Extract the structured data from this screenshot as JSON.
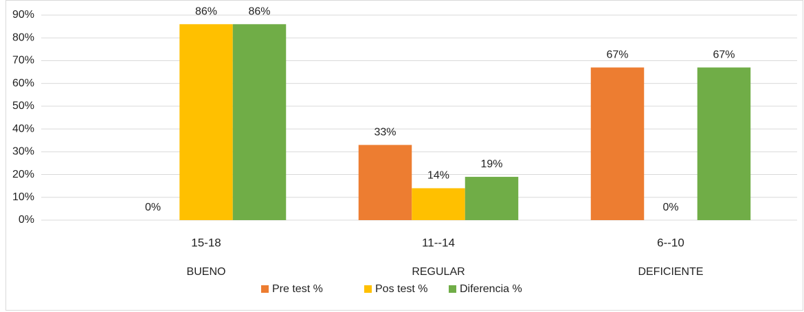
{
  "chart_data": {
    "type": "bar",
    "categories": [
      "15-18",
      "11--14",
      "6--10"
    ],
    "groups": [
      "BUENO",
      "REGULAR",
      "DEFICIENTE"
    ],
    "series": [
      {
        "name": "Pre test %",
        "color": "#ed7d31",
        "values": [
          0,
          33,
          67
        ],
        "value_labels": [
          "0%",
          "33%",
          "67%"
        ]
      },
      {
        "name": "Pos test %",
        "color": "#ffc000",
        "values": [
          86,
          14,
          0
        ],
        "value_labels": [
          "86%",
          "14%",
          "0%"
        ]
      },
      {
        "name": "Diferencia %",
        "color": "#70ad47",
        "values": [
          86,
          19,
          67
        ],
        "value_labels": [
          "86%",
          "19%",
          "67%"
        ]
      }
    ],
    "ylim": [
      0,
      90
    ],
    "yticks": [
      {
        "value": 0,
        "label": "0%"
      },
      {
        "value": 10,
        "label": "10%"
      },
      {
        "value": 20,
        "label": "20%"
      },
      {
        "value": 30,
        "label": "30%"
      },
      {
        "value": 40,
        "label": "40%"
      },
      {
        "value": 50,
        "label": "50%"
      },
      {
        "value": 60,
        "label": "60%"
      },
      {
        "value": 70,
        "label": "70%"
      },
      {
        "value": 80,
        "label": "80%"
      },
      {
        "value": 90,
        "label": "90%"
      }
    ],
    "grid": true,
    "legend": "bottom"
  }
}
